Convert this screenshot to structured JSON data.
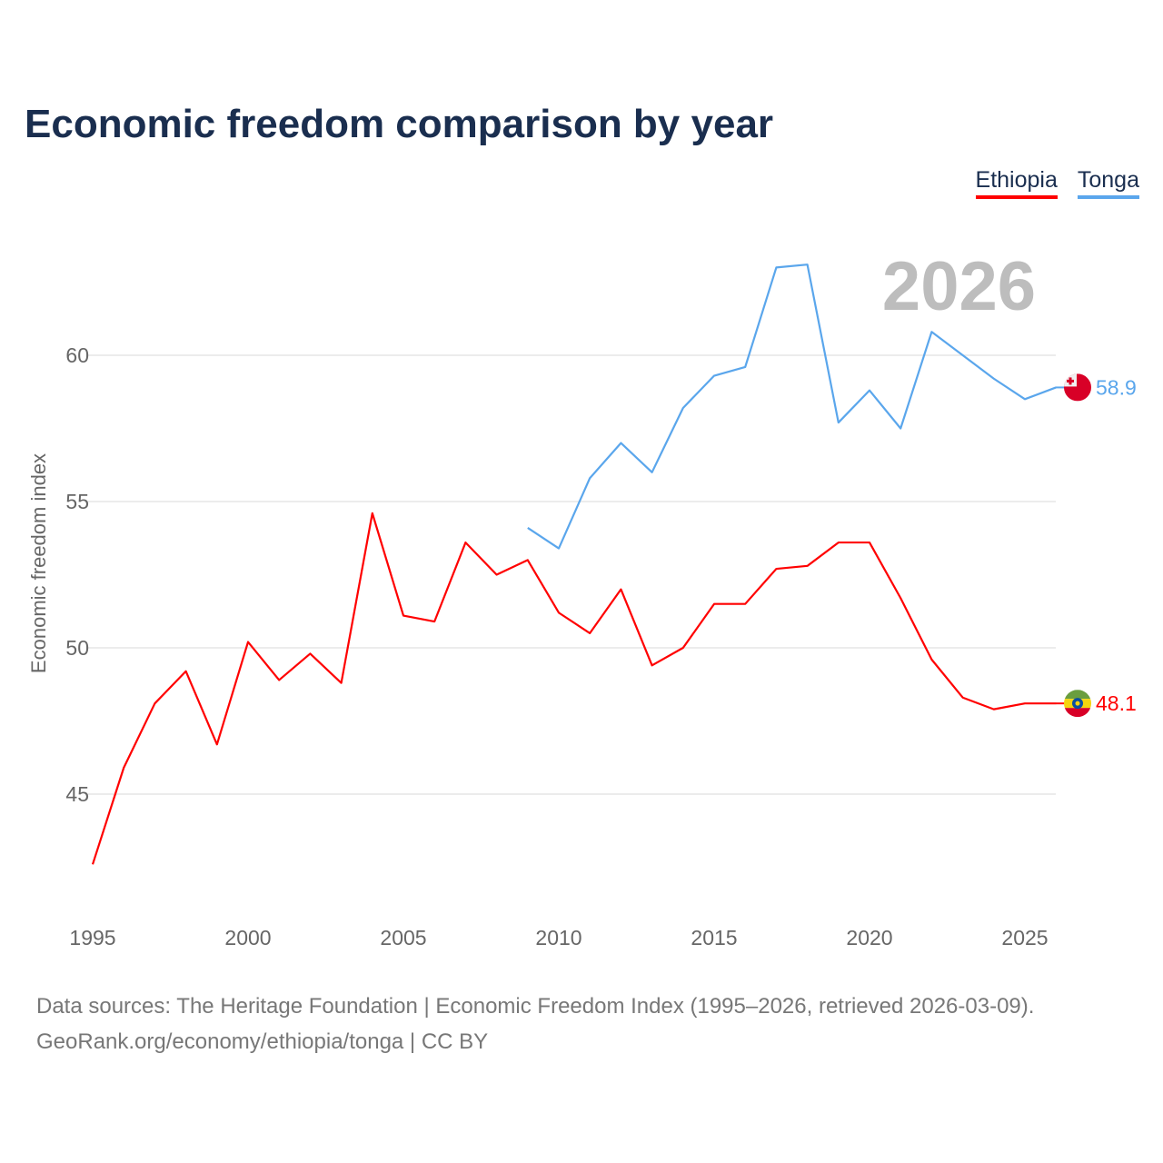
{
  "title": "Economic freedom comparison by year",
  "footer": {
    "line1": "Data sources: The Heritage Foundation | Economic Freedom Index (1995–2026, retrieved 2026-03-09).",
    "line2": "GeoRank.org/economy/ethiopia/tonga | CC BY"
  },
  "chart_data": {
    "type": "line",
    "title": "Economic freedom comparison by year",
    "xlabel": "",
    "ylabel": "Economic freedom index",
    "year_label": "2026",
    "xlim": [
      1995,
      2026
    ],
    "ylim": [
      41.5,
      64.5
    ],
    "x_ticks": [
      "1995",
      "2000",
      "2005",
      "2010",
      "2015",
      "2020",
      "2025"
    ],
    "y_ticks": [
      "45",
      "50",
      "55",
      "60"
    ],
    "legend_position": "top-right",
    "series": [
      {
        "name": "Ethiopia",
        "color": "#ff0000",
        "end_label": "48.1",
        "flag": "ethiopia-flag",
        "x": [
          1995,
          1996,
          1997,
          1998,
          1999,
          2000,
          2001,
          2002,
          2003,
          2004,
          2005,
          2006,
          2007,
          2008,
          2009,
          2010,
          2011,
          2012,
          2013,
          2014,
          2015,
          2016,
          2017,
          2018,
          2019,
          2020,
          2021,
          2022,
          2023,
          2024,
          2025,
          2026
        ],
        "values": [
          42.6,
          45.9,
          48.1,
          49.2,
          46.7,
          50.2,
          48.9,
          49.8,
          48.8,
          54.6,
          51.1,
          50.9,
          53.6,
          52.5,
          53.0,
          51.2,
          50.5,
          52.0,
          49.4,
          50.0,
          51.5,
          51.5,
          52.7,
          52.8,
          53.6,
          53.6,
          51.7,
          49.6,
          48.3,
          47.9,
          48.1,
          48.1
        ]
      },
      {
        "name": "Tonga",
        "color": "#5aa6ec",
        "end_label": "58.9",
        "flag": "tonga-flag",
        "x": [
          2009,
          2010,
          2011,
          2012,
          2013,
          2014,
          2015,
          2016,
          2017,
          2018,
          2019,
          2020,
          2021,
          2022,
          2023,
          2024,
          2025,
          2026
        ],
        "values": [
          54.1,
          53.4,
          55.8,
          57.0,
          56.0,
          58.2,
          59.3,
          59.6,
          63.0,
          63.1,
          57.7,
          58.8,
          57.5,
          60.8,
          60.0,
          59.2,
          58.5,
          58.9
        ]
      }
    ]
  }
}
